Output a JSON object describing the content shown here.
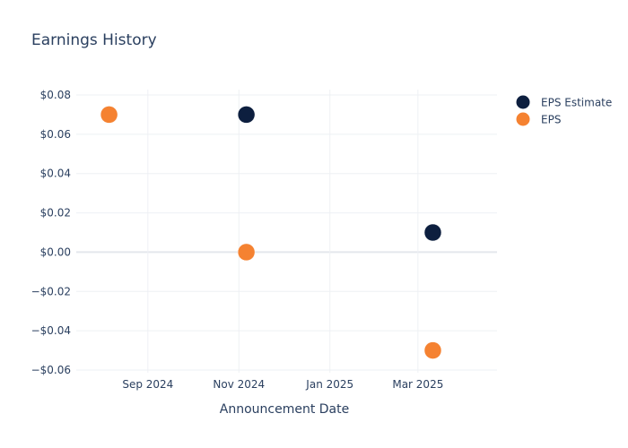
{
  "chart_data": {
    "type": "scatter",
    "title": "Earnings History",
    "xlabel": "Announcement Date",
    "ylabel": "",
    "x_tick_labels": [
      "Sep 2024",
      "Nov 2024",
      "Jan 2025",
      "Mar 2025"
    ],
    "x_ticks": [
      "2024-09-01",
      "2024-11-01",
      "2025-01-01",
      "2025-03-01"
    ],
    "x_range": [
      "2024-07-15",
      "2025-04-23"
    ],
    "y_tick_labels": [
      "$0.08",
      "$0.06",
      "$0.04",
      "$0.02",
      "$0.00",
      "−$0.02",
      "−$0.04",
      "−$0.06"
    ],
    "y_ticks": [
      0.08,
      0.06,
      0.04,
      0.02,
      0.0,
      -0.02,
      -0.04,
      -0.06
    ],
    "ylim": [
      -0.06,
      0.08
    ],
    "grid": true,
    "legend_position": "top-right",
    "series": [
      {
        "name": "EPS Estimate",
        "color": "#0d1f3f",
        "x": [
          "2024-08-06",
          "2024-11-06",
          "2025-03-11"
        ],
        "values": [
          0.07,
          0.07,
          0.01
        ]
      },
      {
        "name": "EPS",
        "color": "#f58231",
        "x": [
          "2024-08-06",
          "2024-11-06",
          "2025-03-11"
        ],
        "values": [
          0.07,
          0.0,
          -0.05
        ]
      }
    ]
  }
}
